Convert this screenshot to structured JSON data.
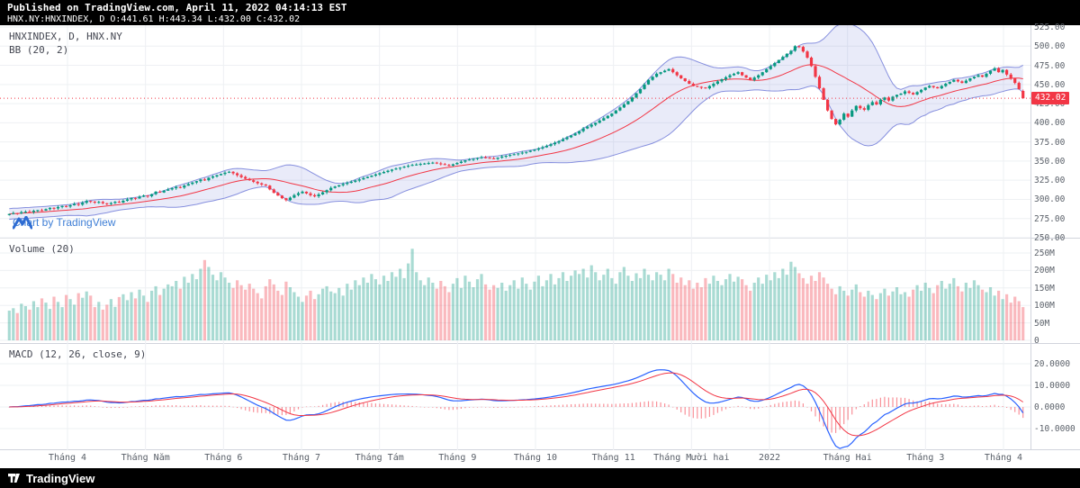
{
  "header": {
    "published_line": "Published on TradingView.com, April 11, 2022 04:14:13 EST",
    "symbol_line": "HNX.NY:HNXINDEX, D O:441.61 H:443.34 L:432.00 C:432.02"
  },
  "legends": {
    "symbol": "HNXINDEX, D, HNX.NY",
    "bb": "BB (20, 2)",
    "volume": "Volume (20)",
    "macd": "MACD (12, 26, close, 9)"
  },
  "watermark": {
    "label": "Chart by TradingView"
  },
  "footer": {
    "brand": "TradingView"
  },
  "price_axis": {
    "ticks": [
      "525.00",
      "500.00",
      "475.00",
      "450.00",
      "425.00",
      "400.00",
      "375.00",
      "350.00",
      "325.00",
      "300.00",
      "275.00",
      "250.00"
    ],
    "last_price": "432.02"
  },
  "volume_axis": {
    "ticks": [
      "250M",
      "200M",
      "150M",
      "100M",
      "50M",
      "0"
    ]
  },
  "macd_axis": {
    "ticks": [
      "20.0000",
      "10.0000",
      "0.0000",
      "-10.0000"
    ]
  },
  "colors": {
    "up": "#089981",
    "down": "#f23645",
    "vol_up": "rgba(8,153,129,0.35)",
    "vol_down": "rgba(242,54,69,0.35)",
    "grid": "#eef0f3",
    "bb_fill": "rgba(98,110,212,0.14)",
    "bb_band": "rgba(98,110,212,0.75)",
    "bb_basis": "#f23645",
    "macd_line": "#2962ff",
    "signal_line": "#f23645",
    "hist": "rgba(242,54,69,0.55)",
    "last_price_line": "#f23645",
    "axis_text": "#5a6069",
    "watermark_blue": "#3f7fd6"
  },
  "chart_data": [
    {
      "type": "candlestick",
      "title": "HNXINDEX, D, HNX.NY",
      "overlay_indicator": "Bollinger Bands (20, 2)",
      "ylim": [
        250,
        525
      ],
      "y_tick_step": 25,
      "x_labels": [
        "Tháng 4",
        "Tháng Năm",
        "Tháng 6",
        "Tháng 7",
        "Tháng Tám",
        "Tháng 9",
        "Tháng 10",
        "Tháng 11",
        "Tháng Mười hai",
        "2022",
        "Tháng Hai",
        "Tháng 3",
        "Tháng 4"
      ],
      "last_ohlc": {
        "open": 441.61,
        "high": 443.34,
        "low": 432.0,
        "close": 432.02
      },
      "closes": [
        281,
        282.1,
        281.5,
        283.2,
        284,
        283.4,
        285.1,
        286,
        285.3,
        287.2,
        289,
        288.2,
        290.1,
        291.4,
        290.6,
        292.3,
        294,
        293.1,
        295.6,
        298,
        297,
        295.8,
        296.6,
        294.9,
        294,
        295.3,
        296.8,
        295.9,
        298.2,
        300.1,
        302,
        301.2,
        303.5,
        305,
        304.2,
        306.8,
        310,
        309.1,
        311.4,
        313,
        314.5,
        316.2,
        315.4,
        318,
        320.1,
        322,
        323.8,
        326,
        325.1,
        328.3,
        330,
        331.6,
        333.2,
        334.8,
        336,
        334,
        331.5,
        329.2,
        327,
        325,
        323,
        321,
        319.5,
        318,
        313,
        308.5,
        305,
        301.5,
        299,
        302.3,
        305.6,
        308,
        310,
        307.8,
        305.5,
        304,
        306.5,
        309.2,
        312,
        315,
        316.8,
        318.5,
        320.2,
        321.6,
        323,
        324.6,
        326.2,
        327.8,
        329.4,
        331,
        332.6,
        334.2,
        335.8,
        337.4,
        339,
        340.2,
        341.4,
        342.6,
        343.8,
        345,
        345.6,
        346.2,
        346.8,
        347.4,
        348,
        347,
        346,
        345,
        344,
        345.8,
        347.5,
        349.2,
        351,
        352,
        353,
        354,
        355,
        354.3,
        353.6,
        353,
        354.5,
        356,
        357,
        358,
        359,
        360,
        361,
        362,
        363.5,
        365,
        366.5,
        368,
        370,
        372,
        374,
        376,
        378.5,
        381,
        383.5,
        386,
        389,
        392.5,
        395,
        397.5,
        400,
        403,
        406,
        409,
        412,
        416,
        420,
        424,
        428,
        433,
        438.5,
        444,
        450,
        456,
        460,
        464,
        466,
        468,
        470,
        466,
        462,
        458,
        454.5,
        451,
        448,
        447,
        446,
        445,
        448,
        451,
        454,
        456.7,
        459.4,
        462,
        464,
        466,
        462,
        459,
        456,
        459,
        462,
        466,
        470,
        474,
        478,
        482,
        486,
        490,
        494,
        500,
        499,
        493,
        485,
        474,
        460,
        445,
        430,
        416,
        405,
        398,
        404,
        412,
        408,
        416,
        422,
        419,
        417,
        423,
        427,
        424,
        430,
        433,
        429,
        434,
        436.5,
        438,
        441,
        439,
        437,
        440,
        443,
        446,
        448,
        446.5,
        445,
        448,
        451,
        453.5,
        456,
        454,
        452,
        455,
        458,
        460,
        462,
        460,
        464,
        468,
        471,
        466,
        469,
        463,
        458,
        452,
        444,
        432.02
      ]
    },
    {
      "type": "bar",
      "title": "Volume (20)",
      "ylabel": "Volume",
      "ylim_millions": [
        0,
        250
      ],
      "values_millions": [
        85,
        92,
        78,
        105,
        98,
        88,
        112,
        95,
        120,
        108,
        90,
        125,
        110,
        95,
        130,
        118,
        102,
        135,
        122,
        140,
        128,
        95,
        110,
        88,
        102,
        118,
        96,
        124,
        132,
        115,
        138,
        120,
        145,
        128,
        110,
        142,
        155,
        130,
        148,
        160,
        155,
        170,
        148,
        182,
        165,
        190,
        175,
        205,
        230,
        210,
        188,
        172,
        195,
        180,
        165,
        150,
        172,
        158,
        145,
        162,
        148,
        135,
        120,
        155,
        175,
        160,
        142,
        130,
        168,
        152,
        138,
        125,
        110,
        128,
        142,
        118,
        132,
        148,
        155,
        140,
        135,
        150,
        128,
        162,
        145,
        172,
        158,
        180,
        165,
        190,
        175,
        160,
        185,
        170,
        195,
        182,
        205,
        178,
        220,
        262,
        195,
        172,
        158,
        180,
        165,
        148,
        170,
        155,
        138,
        162,
        178,
        150,
        185,
        168,
        152,
        175,
        190,
        160,
        145,
        158,
        150,
        165,
        142,
        158,
        172,
        148,
        180,
        162,
        145,
        168,
        185,
        155,
        172,
        190,
        160,
        178,
        195,
        170,
        185,
        200,
        190,
        205,
        180,
        215,
        195,
        172,
        188,
        205,
        178,
        162,
        195,
        210,
        185,
        170,
        192,
        178,
        205,
        188,
        172,
        195,
        188,
        172,
        205,
        190,
        165,
        180,
        158,
        172,
        148,
        165,
        152,
        178,
        162,
        185,
        170,
        158,
        175,
        190,
        168,
        182,
        175,
        158,
        142,
        165,
        180,
        162,
        188,
        172,
        195,
        178,
        205,
        188,
        225,
        210,
        192,
        178,
        162,
        185,
        170,
        195,
        180,
        162,
        148,
        132,
        155,
        142,
        128,
        145,
        160,
        138,
        125,
        142,
        130,
        118,
        135,
        148,
        128,
        140,
        152,
        132,
        138,
        125,
        145,
        158,
        142,
        165,
        150,
        135,
        158,
        170,
        148,
        162,
        178,
        155,
        140,
        165,
        150,
        172,
        158,
        145,
        138,
        152,
        128,
        142,
        118,
        132,
        108,
        125,
        112,
        95
      ]
    },
    {
      "type": "line",
      "title": "MACD (12, 26, close, 9)",
      "ylim": [
        -15,
        22
      ],
      "y_ticks": [
        20,
        10,
        0,
        -10
      ],
      "derived": "MACD line, signal line and histogram are computed in-page from the candlestick closes above"
    }
  ]
}
